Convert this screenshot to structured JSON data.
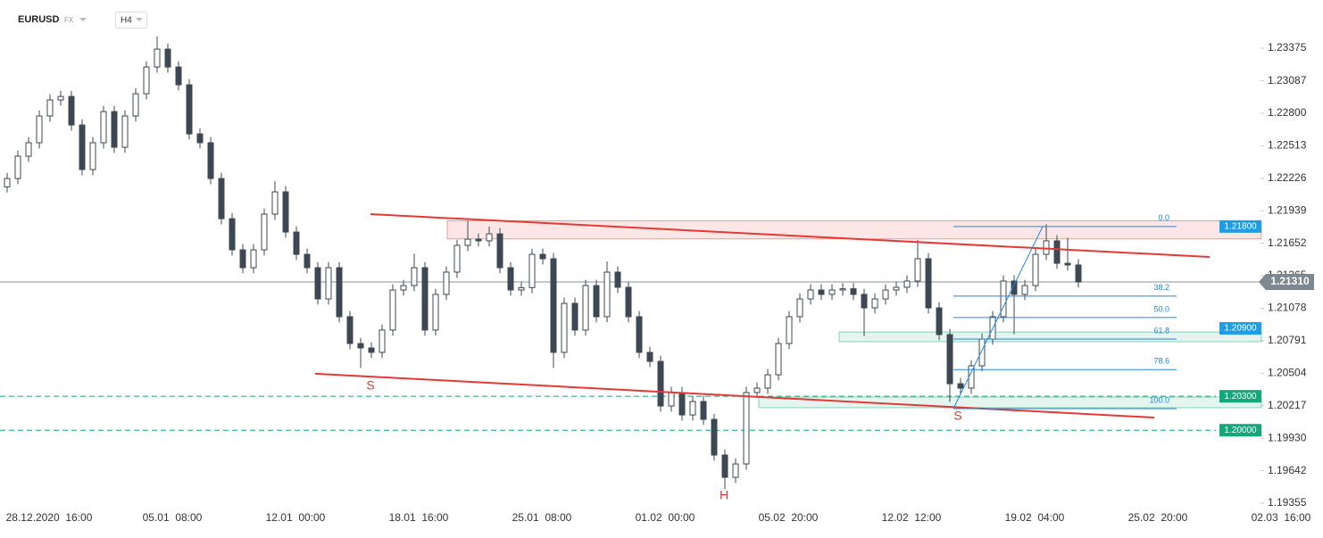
{
  "header": {
    "symbol": "EURUSD",
    "market": "FX",
    "timeframe": "H4"
  },
  "chart_data": {
    "type": "candlestick",
    "x_labels": [
      "28.12.2020  16:00",
      "05.01  08:00",
      "12.01  00:00",
      "18.01  16:00",
      "25.01  08:00",
      "01.02  00:00",
      "05.02  20:00",
      "12.02  12:00",
      "19.02  04:00",
      "25.02  20:00",
      "02.03  16:00"
    ],
    "open": [
      1.2215,
      1.22224,
      1.22421,
      1.2254,
      1.22776,
      1.22918,
      1.22949,
      1.22697,
      1.22303,
      1.2254,
      1.22815,
      1.225,
      1.22776,
      1.22973,
      1.23209,
      1.23367,
      1.23209,
      1.23052,
      1.22618,
      1.2254,
      1.22224,
      1.21869,
      1.21594,
      1.21436,
      1.21594,
      1.21909,
      1.22106,
      1.21751,
      1.21554,
      1.21436,
      1.2116,
      1.21436,
      1.21003,
      1.20766,
      1.20727,
      1.20688,
      1.20885,
      1.21239,
      1.21278,
      1.21436,
      1.20885,
      1.212,
      1.21397,
      1.21633,
      1.21688,
      1.21673,
      1.21735,
      1.21436,
      1.21239,
      1.2126,
      1.21554,
      1.21515,
      1.20688,
      1.21121,
      1.20885,
      1.21278,
      1.21003,
      1.21397,
      1.21263,
      1.21003,
      1.20688,
      1.20608,
      1.20214,
      1.20333,
      1.20135,
      1.20254,
      1.20096,
      1.19781,
      1.19584,
      1.19702,
      1.20333,
      1.20372,
      1.2049,
      1.20766,
      1.21003,
      1.2116,
      1.21239,
      1.212,
      1.21239,
      1.2125,
      1.212,
      1.21081,
      1.2116,
      1.21239,
      1.21263,
      1.21318,
      1.21515,
      1.21081,
      1.20845,
      1.20411,
      1.20372,
      1.20569,
      1.20805,
      1.21003,
      1.21318,
      1.212,
      1.21278,
      1.21554,
      1.21673,
      1.21475,
      1.2146
    ],
    "high": [
      1.22274,
      1.22471,
      1.2259,
      1.22826,
      1.22968,
      1.22999,
      1.22999,
      1.22747,
      1.2259,
      1.22865,
      1.22865,
      1.22826,
      1.23023,
      1.23259,
      1.2348,
      1.23417,
      1.23259,
      1.23102,
      1.22668,
      1.2259,
      1.22274,
      1.21919,
      1.21644,
      1.21644,
      1.21959,
      1.222,
      1.22156,
      1.21801,
      1.21604,
      1.21486,
      1.21486,
      1.21486,
      1.21053,
      1.20816,
      1.20777,
      1.20935,
      1.21289,
      1.21328,
      1.2156,
      1.21486,
      1.2125,
      1.21447,
      1.21683,
      1.2185,
      1.21738,
      1.218,
      1.21785,
      1.21486,
      1.2131,
      1.21604,
      1.21604,
      1.21565,
      1.21171,
      1.21171,
      1.21328,
      1.21328,
      1.2149,
      1.21447,
      1.21313,
      1.21053,
      1.20738,
      1.20658,
      1.20383,
      1.20383,
      1.20304,
      1.20304,
      1.20146,
      1.19831,
      1.19752,
      1.20383,
      1.20422,
      1.2054,
      1.20816,
      1.21053,
      1.2121,
      1.21289,
      1.21289,
      1.21289,
      1.213,
      1.213,
      1.2125,
      1.2121,
      1.21289,
      1.21313,
      1.21368,
      1.2168,
      1.21565,
      1.21131,
      1.20895,
      1.20461,
      1.20619,
      1.20855,
      1.21053,
      1.21368,
      1.21368,
      1.21328,
      1.21604,
      1.2182,
      1.21723,
      1.217,
      1.2151
    ],
    "low": [
      1.221,
      1.22174,
      1.22371,
      1.2249,
      1.22726,
      1.22868,
      1.22647,
      1.22253,
      1.22253,
      1.2249,
      1.2245,
      1.2245,
      1.22726,
      1.22923,
      1.23159,
      1.23159,
      1.23002,
      1.22568,
      1.2249,
      1.22174,
      1.21819,
      1.21544,
      1.21386,
      1.21386,
      1.21544,
      1.21859,
      1.21701,
      1.21504,
      1.21386,
      1.2111,
      1.2111,
      1.20953,
      1.20716,
      1.2055,
      1.20638,
      1.20638,
      1.20835,
      1.21189,
      1.21228,
      1.20835,
      1.20835,
      1.2115,
      1.21347,
      1.21583,
      1.21623,
      1.21623,
      1.21386,
      1.21189,
      1.21189,
      1.2121,
      1.21465,
      1.2055,
      1.20638,
      1.20835,
      1.20835,
      1.20953,
      1.20953,
      1.21213,
      1.20953,
      1.20638,
      1.20558,
      1.20164,
      1.20164,
      1.20085,
      1.20085,
      1.20046,
      1.19731,
      1.1948,
      1.19534,
      1.19652,
      1.20283,
      1.20322,
      1.2044,
      1.20716,
      1.20953,
      1.2111,
      1.2115,
      1.2115,
      1.21189,
      1.2115,
      1.2083,
      1.21031,
      1.2111,
      1.21189,
      1.21213,
      1.21268,
      1.21031,
      1.20795,
      1.2025,
      1.20322,
      1.20322,
      1.20519,
      1.20755,
      1.20953,
      1.2085,
      1.2115,
      1.21228,
      1.21504,
      1.21425,
      1.2141,
      1.2126
    ],
    "close": [
      1.22224,
      1.22421,
      1.2254,
      1.22776,
      1.22918,
      1.22949,
      1.22697,
      1.22303,
      1.2254,
      1.22815,
      1.225,
      1.22776,
      1.22973,
      1.23209,
      1.23367,
      1.23209,
      1.23052,
      1.22618,
      1.2254,
      1.22224,
      1.21869,
      1.21594,
      1.21436,
      1.21594,
      1.21909,
      1.22106,
      1.21751,
      1.21554,
      1.21436,
      1.2116,
      1.21436,
      1.21003,
      1.20766,
      1.20727,
      1.20688,
      1.20885,
      1.21239,
      1.21278,
      1.21436,
      1.20885,
      1.212,
      1.21397,
      1.21633,
      1.21688,
      1.21673,
      1.21735,
      1.21436,
      1.21239,
      1.2126,
      1.21554,
      1.21515,
      1.20688,
      1.21121,
      1.20885,
      1.21278,
      1.21003,
      1.21397,
      1.21263,
      1.21003,
      1.20688,
      1.20608,
      1.20214,
      1.20333,
      1.20135,
      1.20254,
      1.20096,
      1.19781,
      1.19584,
      1.19702,
      1.20333,
      1.20372,
      1.2049,
      1.20766,
      1.21003,
      1.2116,
      1.21239,
      1.212,
      1.21239,
      1.2125,
      1.212,
      1.21081,
      1.2116,
      1.21239,
      1.21263,
      1.21318,
      1.21515,
      1.21081,
      1.20845,
      1.20411,
      1.20372,
      1.20569,
      1.20805,
      1.21003,
      1.21318,
      1.212,
      1.21278,
      1.21554,
      1.21673,
      1.21475,
      1.2146,
      1.2131
    ],
    "candle_color": "#3d4852",
    "ylim": [
      1.19308,
      1.23801
    ],
    "yticks": [
      {
        "value": 1.23375,
        "label": "1.23375"
      },
      {
        "value": 1.23087,
        "label": "1.23087"
      },
      {
        "value": 1.228,
        "label": "1.22800"
      },
      {
        "value": 1.22513,
        "label": "1.22513"
      },
      {
        "value": 1.22226,
        "label": "1.22226"
      },
      {
        "value": 1.21939,
        "label": "1.21939"
      },
      {
        "value": 1.21652,
        "label": "1.21652"
      },
      {
        "value": 1.21365,
        "label": "1.21365"
      },
      {
        "value": 1.21078,
        "label": "1.21078"
      },
      {
        "value": 1.20791,
        "label": "1.20791"
      },
      {
        "value": 1.20504,
        "label": "1.20504"
      },
      {
        "value": 1.20217,
        "label": "1.20217"
      },
      {
        "value": 1.1993,
        "label": "1.19930"
      },
      {
        "value": 1.19642,
        "label": "1.19642"
      },
      {
        "value": 1.19355,
        "label": "1.19355"
      }
    ],
    "current_price": {
      "value": 1.2131,
      "label": "1.21310",
      "color": "#7d8891"
    },
    "price_levels": [
      {
        "value": 1.218,
        "label": "1.21800",
        "color": "#1e9ee6",
        "dashed": false
      },
      {
        "value": 1.209,
        "label": "1.20900",
        "color": "#1e9ee6",
        "dashed": false
      },
      {
        "value": 1.203,
        "label": "1.20300",
        "color": "#13a87a",
        "dashed": true
      },
      {
        "value": 1.2,
        "label": "1.20000",
        "color": "#13a87a",
        "dashed": true
      }
    ],
    "zones": [
      {
        "from": 1.2169,
        "to": 1.2185,
        "color": "#e53935"
      },
      {
        "from": 1.20782,
        "to": 1.20868,
        "color": "#19a974"
      },
      {
        "from": 1.20199,
        "to": 1.20293,
        "color": "#19a974"
      }
    ],
    "trendlines": [
      {
        "from": 1.21909,
        "to": 1.21531,
        "color": "#e53935"
      },
      {
        "from": 1.20499,
        "to": 1.20112,
        "color": "#e53935"
      }
    ],
    "fibonacci": {
      "high": 1.218,
      "low": 1.20191,
      "color": "#1e88e5",
      "levels": [
        {
          "value": 0,
          "label": "0.0"
        },
        38.2,
        {
          "value": 50,
          "label": "50.0"
        },
        61.8,
        78.6,
        {
          "value": 100,
          "label": "100.0"
        }
      ]
    },
    "pattern_labels": [
      "S",
      "H",
      "S"
    ]
  }
}
